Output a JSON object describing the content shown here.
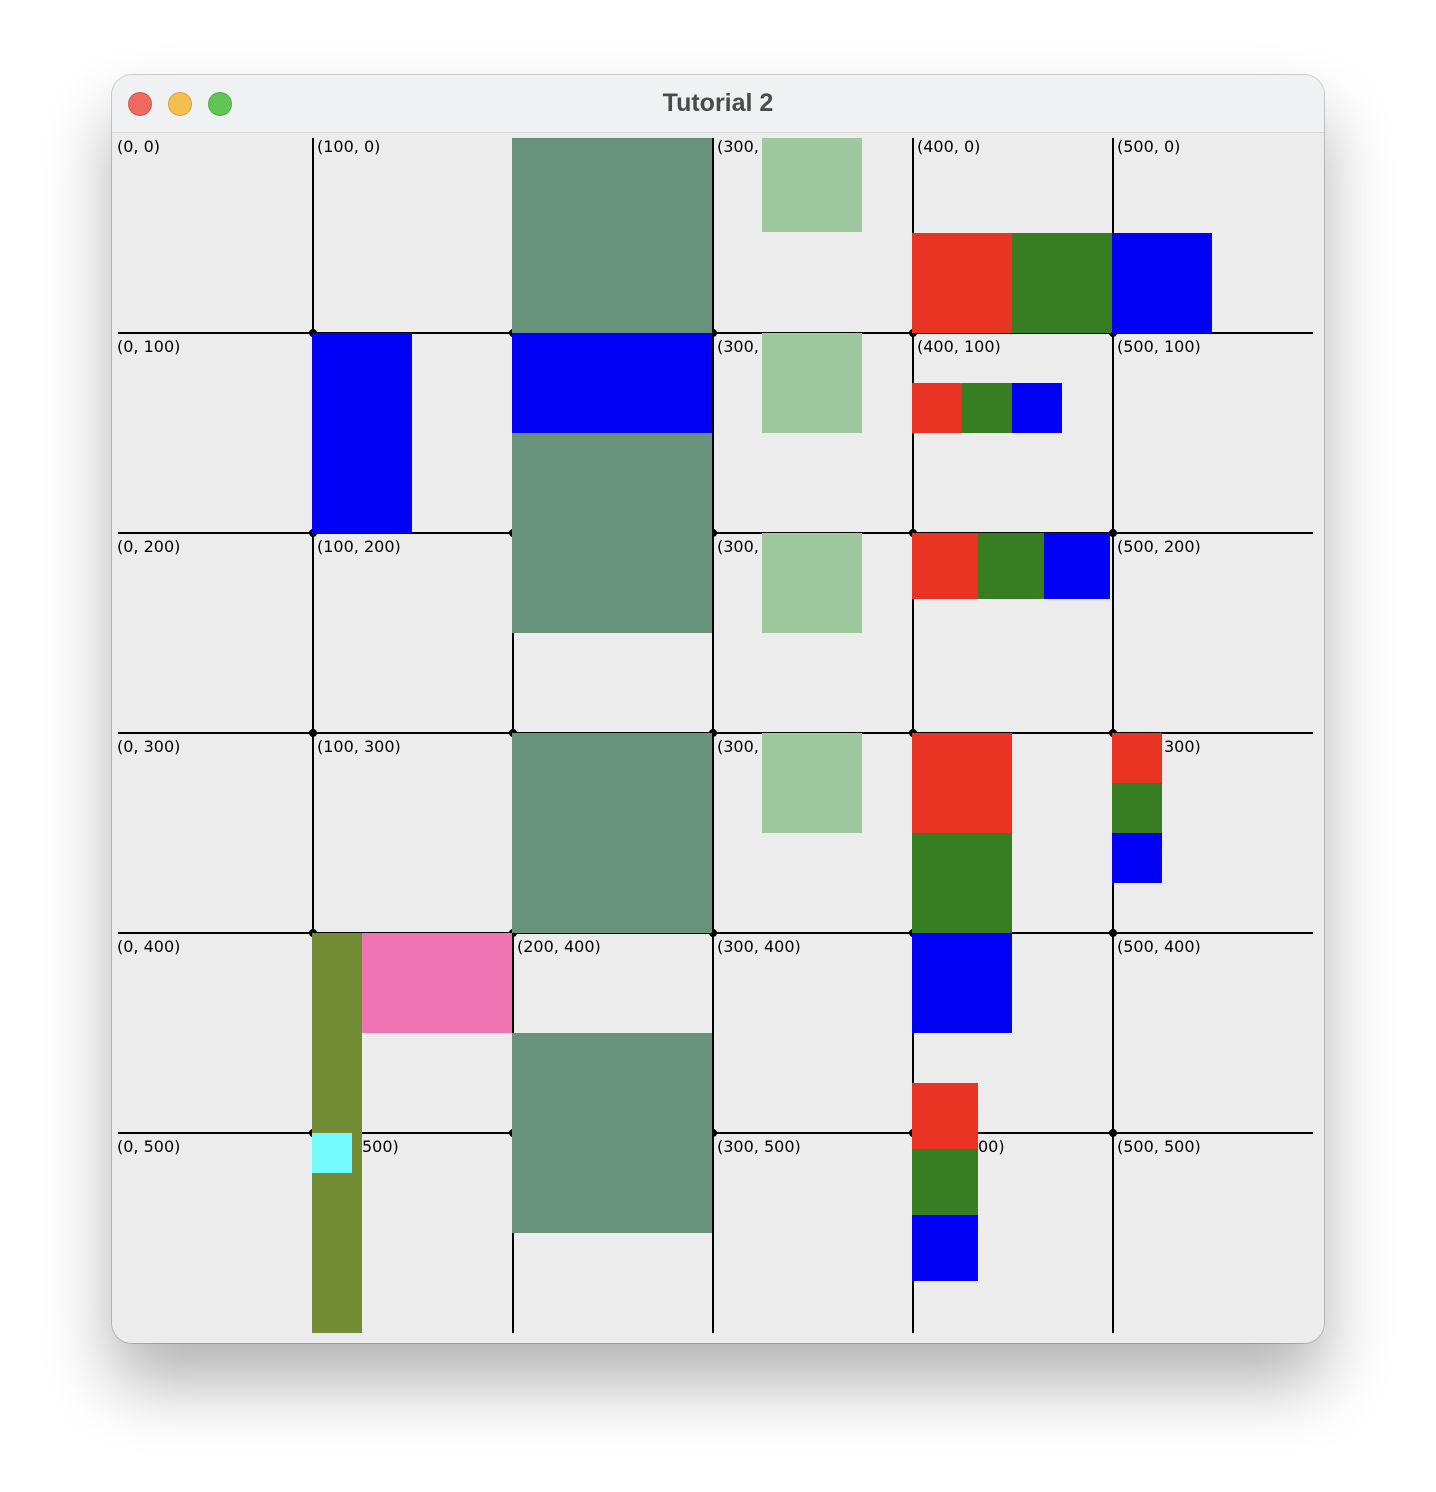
{
  "window": {
    "title": "Tutorial 2"
  },
  "canvas": {
    "background": "#ececec",
    "grid_spacing": 100,
    "grid_max": 500,
    "labels": [
      "(0, 0)",
      "(100, 0)",
      "(300,",
      "(400, 0)",
      "(500, 0)",
      "(0, 100)",
      "(300,",
      "(400, 100)",
      "(500, 100)",
      "(0, 200)",
      "(100, 200)",
      "(300,",
      "(500, 200)",
      "(0, 300)",
      "(100, 300)",
      "(300,",
      "300)",
      "(0, 400)",
      "(200, 400)",
      "(300, 400)",
      "(500, 400)",
      "(0, 500)",
      "500)",
      "(300, 500)",
      "00)",
      "(500, 500)"
    ]
  },
  "colors": {
    "red": "#e93323",
    "green": "#377d22",
    "blue": "#0000f5",
    "dark_sage": "#68927c",
    "light_green": "#9ec99e",
    "olive": "#718c35",
    "pink": "#ee74b4",
    "cyan": "#73fbfd"
  }
}
